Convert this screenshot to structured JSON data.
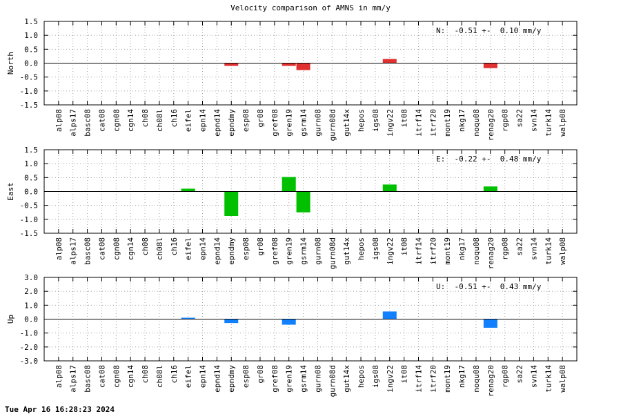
{
  "title": "Velocity comparison of AMNS in mm/y",
  "footer": "Tue Apr 16 16:28:23 2024",
  "chart_data": [
    {
      "type": "bar",
      "ylabel": "North",
      "ylim": [
        -1.5,
        1.5
      ],
      "yticks": [
        "1.5",
        "1.0",
        "0.5",
        "0.0",
        "-0.5",
        "-1.0",
        "-1.5"
      ],
      "color": "#e03030",
      "annotation": "N:  -0.51 +-  0.10 mm/y",
      "grid": true,
      "categories": [
        "alp08",
        "alps17",
        "basc08",
        "cat08",
        "cgn08",
        "cgn14",
        "ch08",
        "ch08l",
        "ch16",
        "eifel",
        "epn14",
        "epnd14",
        "epndmy",
        "esp08",
        "gr08",
        "gref08",
        "gren19",
        "gsrm14",
        "gurn08",
        "gurn08d",
        "gut14x",
        "hepos",
        "igs08",
        "ingv22",
        "it08",
        "itrf14",
        "itrf20",
        "mont19",
        "nkg17",
        "noqu08",
        "renag20",
        "rgp08",
        "sa22",
        "svn14",
        "turk14",
        "walp08"
      ],
      "values": [
        0,
        0,
        0,
        0,
        0,
        0,
        0,
        0,
        0,
        0,
        0,
        0,
        -0.1,
        0,
        0,
        0,
        -0.1,
        -0.25,
        0,
        0,
        0,
        0,
        0,
        0.15,
        0,
        0,
        0,
        0,
        0,
        0,
        -0.18,
        0,
        0,
        0,
        0,
        0
      ]
    },
    {
      "type": "bar",
      "ylabel": "East",
      "ylim": [
        -1.5,
        1.5
      ],
      "yticks": [
        "1.5",
        "1.0",
        "0.5",
        "0.0",
        "-0.5",
        "-1.0",
        "-1.5"
      ],
      "color": "#00c000",
      "annotation": "E:  -0.22 +-  0.48 mm/y",
      "grid": true,
      "categories": [
        "alp08",
        "alps17",
        "basc08",
        "cat08",
        "cgn08",
        "cgn14",
        "ch08",
        "ch08l",
        "ch16",
        "eifel",
        "epn14",
        "epnd14",
        "epndmy",
        "esp08",
        "gr08",
        "gref08",
        "gren19",
        "gsrm14",
        "gurn08",
        "gurn08d",
        "gut14x",
        "hepos",
        "igs08",
        "ingv22",
        "it08",
        "itrf14",
        "itrf20",
        "mont19",
        "nkg17",
        "noqu08",
        "renag20",
        "rgp08",
        "sa22",
        "svn14",
        "turk14",
        "walp08"
      ],
      "values": [
        0,
        0,
        0,
        0,
        0,
        0,
        0,
        0,
        0,
        0.1,
        0,
        0,
        -0.88,
        0,
        0,
        0,
        0.52,
        -0.75,
        0,
        0,
        0,
        0,
        0,
        0.25,
        0,
        0,
        0,
        0,
        0,
        0,
        0.18,
        0,
        0,
        0,
        0,
        0
      ]
    },
    {
      "type": "bar",
      "ylabel": "Up",
      "ylim": [
        -3.0,
        3.0
      ],
      "yticks": [
        "3.0",
        "2.0",
        "1.0",
        "0.0",
        "-1.0",
        "-2.0",
        "-3.0"
      ],
      "color": "#1080ff",
      "annotation": "U:  -0.51 +-  0.43 mm/y",
      "grid": true,
      "categories": [
        "alp08",
        "alps17",
        "basc08",
        "cat08",
        "cgn08",
        "cgn14",
        "ch08",
        "ch08l",
        "ch16",
        "eifel",
        "epn14",
        "epnd14",
        "epndmy",
        "esp08",
        "gr08",
        "gref08",
        "gren19",
        "gsrm14",
        "gurn08",
        "gurn08d",
        "gut14x",
        "hepos",
        "igs08",
        "ingv22",
        "it08",
        "itrf14",
        "itrf20",
        "mont19",
        "nkg17",
        "noqu08",
        "renag20",
        "rgp08",
        "sa22",
        "svn14",
        "turk14",
        "walp08"
      ],
      "values": [
        0,
        0,
        0,
        0,
        0,
        0,
        0,
        0,
        0,
        0.1,
        0,
        0,
        -0.28,
        0,
        0,
        0,
        -0.4,
        0,
        0,
        0,
        0,
        0,
        0,
        0.55,
        0,
        0,
        0,
        0,
        0,
        0,
        -0.62,
        0,
        0,
        0,
        0,
        0
      ]
    }
  ]
}
